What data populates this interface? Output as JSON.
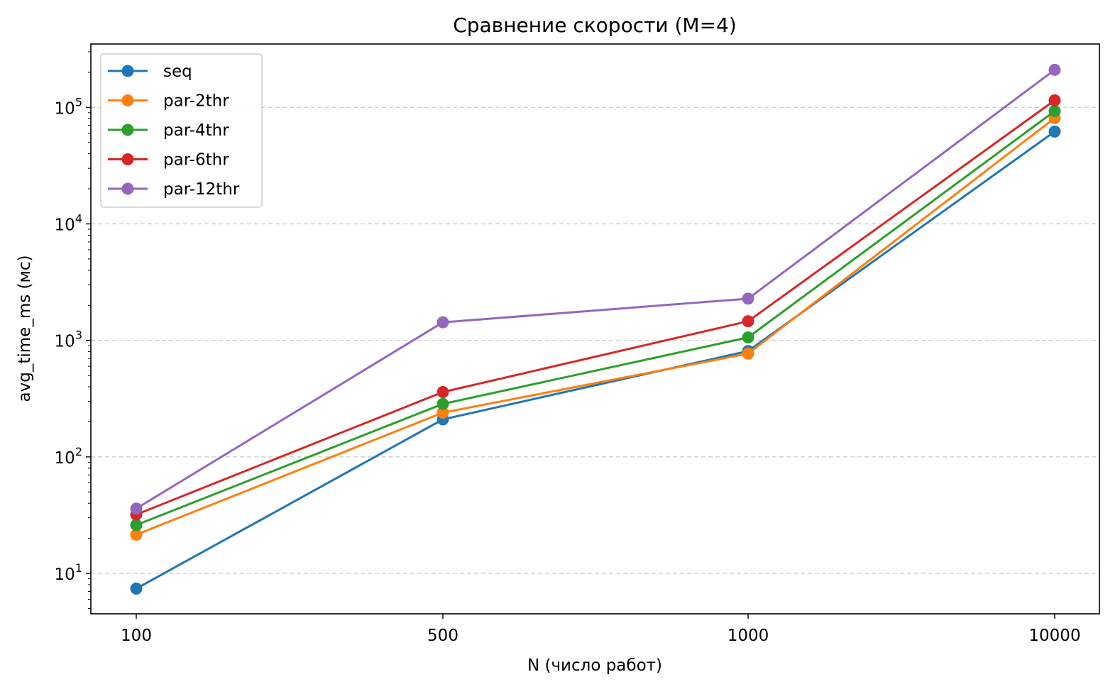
{
  "chart_data": {
    "type": "line",
    "title": "Сравнение скорости (M=4)",
    "xlabel": "N (число работ)",
    "ylabel": "avg_time_ms (мс)",
    "yscale": "log",
    "ylim": [
      4.5,
      350000
    ],
    "grid": "y-major dashed",
    "legend_position": "top-left",
    "categories": [
      "100",
      "500",
      "1000",
      "10000"
    ],
    "y_ticks": [
      {
        "value": 10,
        "base": "10",
        "exp": "1"
      },
      {
        "value": 100,
        "base": "10",
        "exp": "2"
      },
      {
        "value": 1000,
        "base": "10",
        "exp": "3"
      },
      {
        "value": 10000,
        "base": "10",
        "exp": "4"
      },
      {
        "value": 100000,
        "base": "10",
        "exp": "5"
      }
    ],
    "series": [
      {
        "name": "seq",
        "color": "#1f77b4",
        "values": [
          7.4,
          210,
          810,
          62000
        ]
      },
      {
        "name": "par-2thr",
        "color": "#ff7f0e",
        "values": [
          21.5,
          240,
          770,
          81000
        ]
      },
      {
        "name": "par-4thr",
        "color": "#2ca02c",
        "values": [
          26,
          285,
          1060,
          93000
        ]
      },
      {
        "name": "par-6thr",
        "color": "#d62728",
        "values": [
          32,
          360,
          1460,
          115000
        ]
      },
      {
        "name": "par-12thr",
        "color": "#9467bd",
        "values": [
          36,
          1430,
          2280,
          210000
        ]
      }
    ]
  }
}
